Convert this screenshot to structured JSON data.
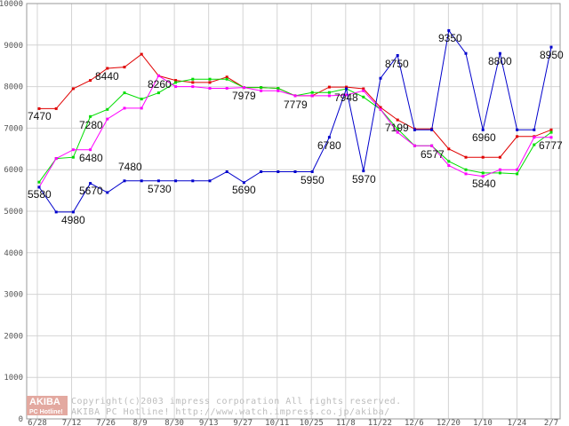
{
  "chart_data": {
    "type": "line",
    "title": "",
    "xlabel": "",
    "ylabel": "",
    "ylim": [
      0,
      10000
    ],
    "yticks": [
      0,
      1000,
      2000,
      3000,
      4000,
      5000,
      6000,
      7000,
      8000,
      9000,
      10000
    ],
    "grid": true,
    "x_tick_labels": [
      "6/28",
      "7/12",
      "7/26",
      "8/9",
      "8/30",
      "9/13",
      "9/27",
      "10/11",
      "10/25",
      "11/8",
      "11/22",
      "12/6",
      "12/20",
      "1/10",
      "1/24",
      "2/7"
    ],
    "series": [
      {
        "color": "#e00000",
        "values": [
          7470,
          7470,
          7950,
          8150,
          8440,
          8470,
          8780,
          8260,
          8150,
          8100,
          8100,
          8230,
          7979,
          7979,
          7960,
          7779,
          7779,
          7990,
          7990,
          7948,
          7500,
          7199,
          6980,
          6980,
          6500,
          6300,
          6300,
          6300,
          6800,
          6800,
          6960
        ]
      },
      {
        "color": "#00dd00",
        "values": [
          5700,
          6270,
          6300,
          7280,
          7450,
          7850,
          7700,
          7850,
          8100,
          8180,
          8180,
          8180,
          7979,
          7979,
          7960,
          7779,
          7860,
          7860,
          7948,
          7750,
          7450,
          6980,
          6577,
          6577,
          6200,
          6000,
          5920,
          5920,
          5900,
          6600,
          6900
        ]
      },
      {
        "color": "#ff00ff",
        "values": [
          5580,
          6270,
          6480,
          6480,
          7220,
          7480,
          7480,
          8260,
          8000,
          8000,
          7960,
          7960,
          7979,
          7900,
          7900,
          7779,
          7779,
          7779,
          7800,
          7900,
          7450,
          6900,
          6577,
          6577,
          6100,
          5900,
          5840,
          6000,
          6000,
          6777,
          6777
        ]
      },
      {
        "color": "#0000cc",
        "values": [
          5580,
          4980,
          4980,
          5670,
          5450,
          5730,
          5730,
          5730,
          5730,
          5730,
          5730,
          5950,
          5690,
          5950,
          5950,
          5950,
          5950,
          6780,
          7948,
          5970,
          8200,
          8750,
          6960,
          6960,
          9350,
          8800,
          6960,
          8800,
          6960,
          6960,
          8950
        ]
      }
    ],
    "annotations": [
      "7470",
      "8440",
      "7280",
      "6480",
      "7480",
      "5580",
      "4980",
      "5670",
      "5730",
      "8260",
      "7979",
      "5690",
      "7779",
      "5950",
      "6780",
      "7948",
      "5970",
      "8750",
      "7199",
      "6577",
      "9350",
      "8800",
      "6960",
      "5840",
      "8950",
      "6777"
    ],
    "watermark": {
      "logo_top": "AKIBA",
      "logo_bottom": "PC Hotline!",
      "line1": "Copyright(c)2003 impress corporation All rights reserved.",
      "line2": "AKIBA PC Hotline! http://www.watch.impress.co.jp/akiba/"
    }
  }
}
